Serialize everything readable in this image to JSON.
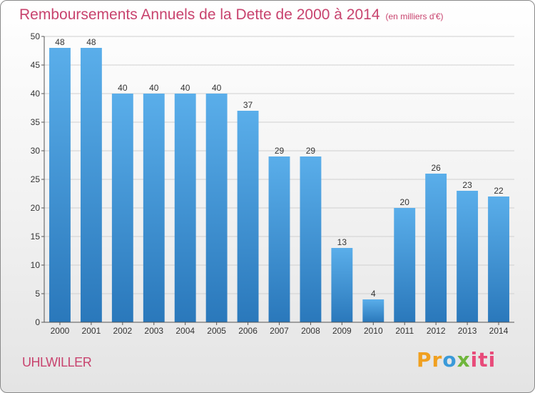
{
  "title": "Remboursements Annuels de la Dette de 2000 à 2014",
  "subtitle": "(en milliers d'€)",
  "place": "UHLWILLER",
  "logo": {
    "parts": [
      "Pr",
      "o",
      "x",
      "iti"
    ]
  },
  "colors": {
    "title": "#c8436e",
    "bar_top": "#5aaeea",
    "bar_bottom": "#2a78bb",
    "grid": "#d0d0d0",
    "axis": "#555555"
  },
  "chart_data": {
    "type": "bar",
    "categories": [
      "2000",
      "2001",
      "2002",
      "2003",
      "2004",
      "2005",
      "2006",
      "2007",
      "2008",
      "2009",
      "2010",
      "2011",
      "2012",
      "2013",
      "2014"
    ],
    "values": [
      48,
      48,
      40,
      40,
      40,
      40,
      37,
      29,
      29,
      13,
      4,
      20,
      26,
      23,
      22
    ],
    "ylim": [
      0,
      50
    ],
    "yticks": [
      0,
      5,
      10,
      15,
      20,
      25,
      30,
      35,
      40,
      45,
      50
    ],
    "grid": true,
    "data_labels": true
  }
}
